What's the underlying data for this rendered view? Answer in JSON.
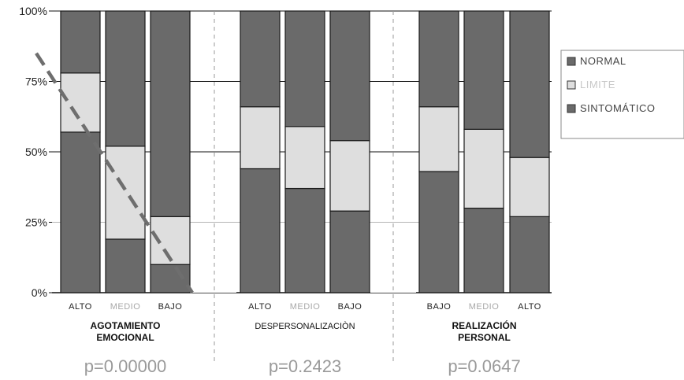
{
  "chart_data": {
    "type": "bar",
    "stacked": true,
    "y_axis": {
      "ticks": [
        "0%",
        "25%",
        "50%",
        "75%",
        "100%"
      ],
      "ylim": [
        0,
        100
      ]
    },
    "legend": {
      "placement": "right",
      "entries": [
        {
          "name": "NORMAL",
          "color": "#6a6a6a"
        },
        {
          "name": "LIMITE",
          "color": "#dedede"
        },
        {
          "name": "SINTOMÁTICO",
          "color": "#6a6a6a"
        }
      ]
    },
    "groups": [
      {
        "title_lines": [
          "AGOTAMIENTO",
          "EMOCIONAL"
        ],
        "p_value": "p=0.00000",
        "bars": [
          {
            "label": "ALTO",
            "sintomatico": 57,
            "limite": 21,
            "normal": 22
          },
          {
            "label": "MEDIO",
            "sintomatico": 19,
            "limite": 33,
            "normal": 48
          },
          {
            "label": "BAJO",
            "sintomatico": 10,
            "limite": 17,
            "normal": 73
          }
        ]
      },
      {
        "title_lines": [
          "DESPERSONALIZACIÒN"
        ],
        "p_value": "p=0.2423",
        "bars": [
          {
            "label": "ALTO",
            "sintomatico": 44,
            "limite": 22,
            "normal": 34
          },
          {
            "label": "MEDIO",
            "sintomatico": 37,
            "limite": 22,
            "normal": 41
          },
          {
            "label": "BAJO",
            "sintomatico": 29,
            "limite": 25,
            "normal": 46
          }
        ]
      },
      {
        "title_lines": [
          "REALIZACIÓN",
          "PERSONAL"
        ],
        "p_value": "p=0.0647",
        "bars": [
          {
            "label": "BAJO",
            "sintomatico": 43,
            "limite": 23,
            "normal": 34
          },
          {
            "label": "MEDIO",
            "sintomatico": 30,
            "limite": 28,
            "normal": 42
          },
          {
            "label": "ALTO",
            "sintomatico": 27,
            "limite": 21,
            "normal": 52
          }
        ]
      }
    ],
    "trend_line": {
      "style": "dashed",
      "color": "#6e6e6e",
      "from_y": 85,
      "to_y": 0
    }
  },
  "colors": {
    "normal": "#6a6a6a",
    "limite": "#dedede",
    "sintomatico": "#6a6a6a",
    "label_dark": "#222222",
    "label_light": "#a8a8a8",
    "pvalue": "#9a9a9a"
  }
}
